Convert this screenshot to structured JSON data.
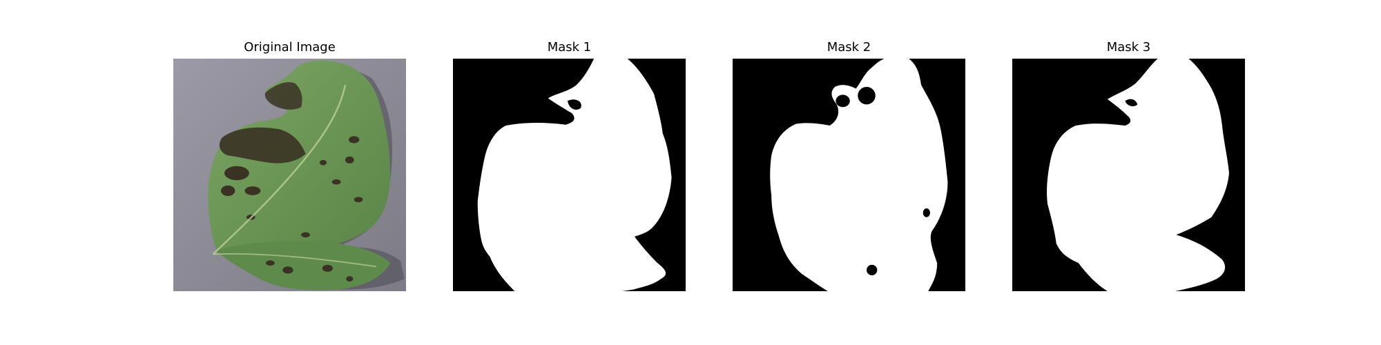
{
  "panels": [
    {
      "title": "Original Image",
      "content": "leaf photograph"
    },
    {
      "title": "Mask 1",
      "content": "binary segmentation mask"
    },
    {
      "title": "Mask 2",
      "content": "binary segmentation mask"
    },
    {
      "title": "Mask 3",
      "content": "binary segmentation mask"
    }
  ],
  "colors": {
    "figure_background": "#ffffff",
    "mask_background": "#000000",
    "mask_foreground": "#ffffff",
    "photo_background": "#8f8e98",
    "leaf_green": "#6f9a5a",
    "lesion_dark": "#3a3324",
    "title_text": "#000000"
  }
}
